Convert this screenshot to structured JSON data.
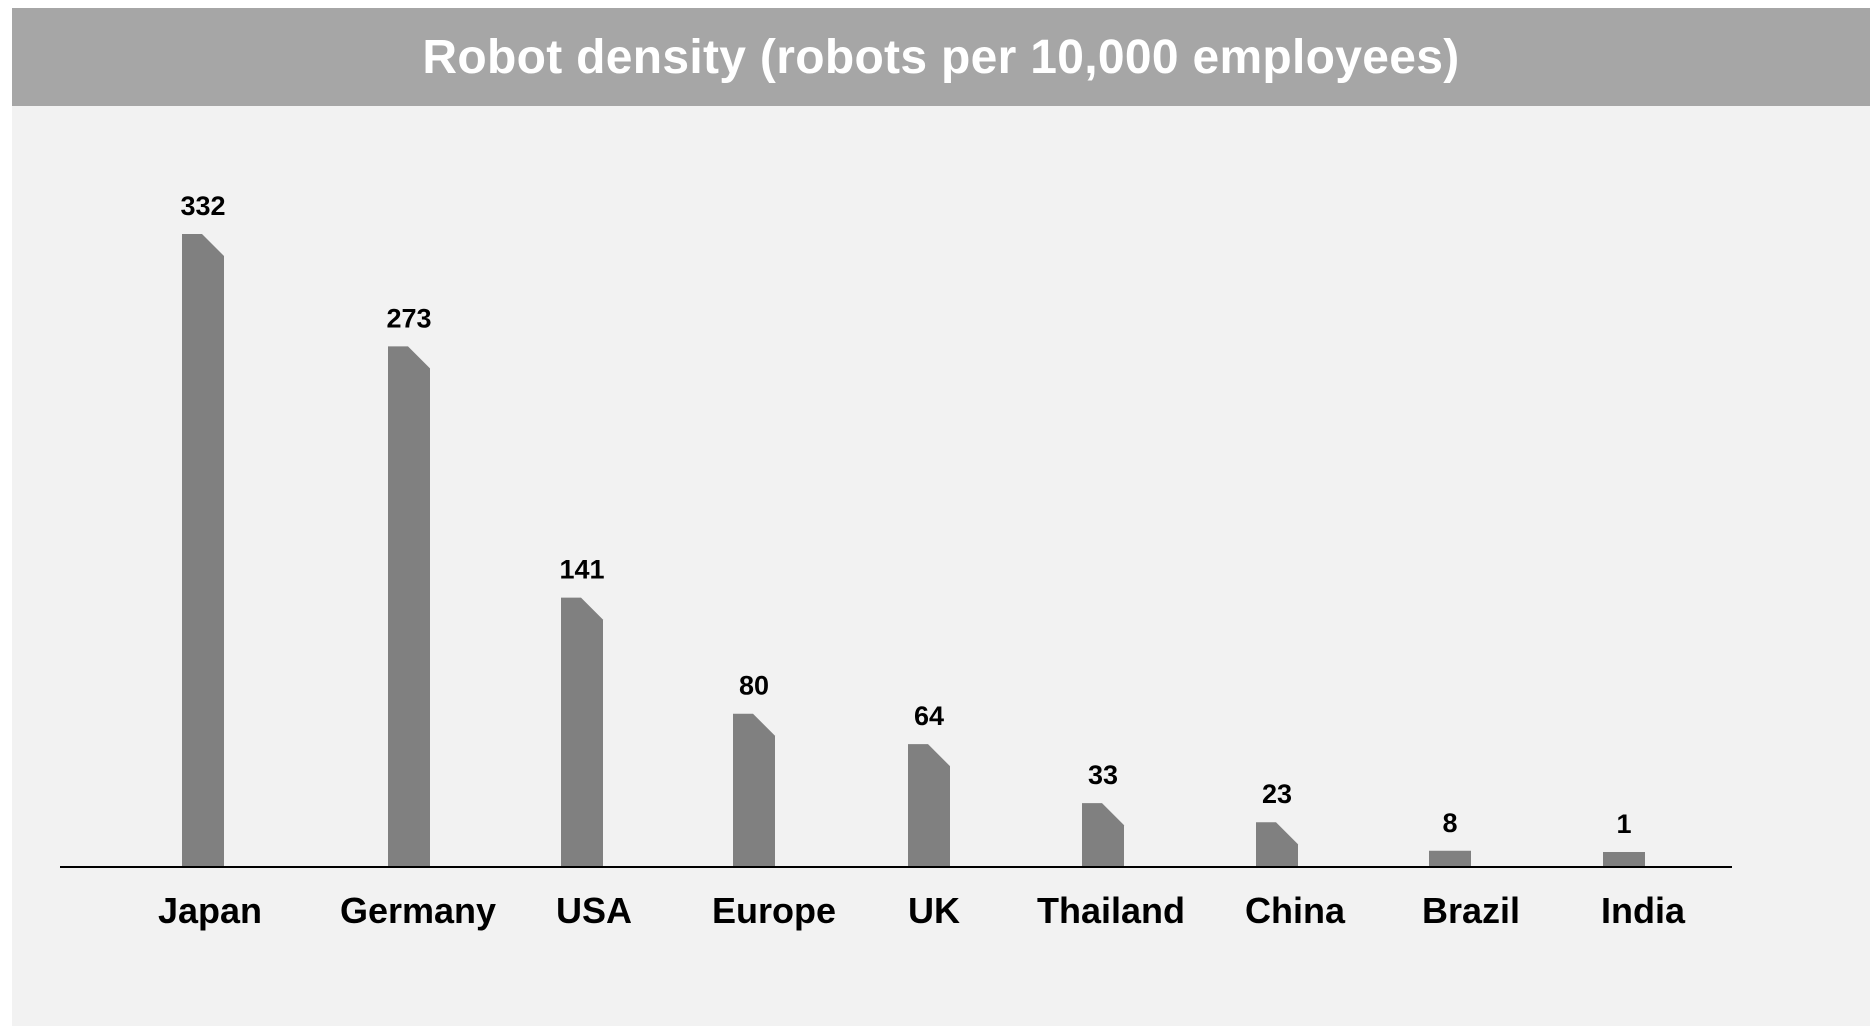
{
  "colors": {
    "panel_background": "#f2f2f2",
    "title_bar": "#a6a6a6",
    "title_text": "#ffffff",
    "bar": "#808080",
    "axis": "#000000",
    "label_text": "#000000"
  },
  "chart_data": {
    "type": "bar",
    "title": "Robot density (robots per 10,000 employees)",
    "xlabel": "",
    "ylabel": "",
    "categories": [
      "Japan",
      "Germany",
      "USA",
      "Europe",
      "UK",
      "Thailand",
      "China",
      "Brazil",
      "India"
    ],
    "values": [
      332,
      273,
      141,
      80,
      64,
      33,
      23,
      8,
      1
    ],
    "data_labels": [
      "332",
      "273",
      "141",
      "80",
      "64",
      "33",
      "23",
      "8",
      "1"
    ],
    "ylim": [
      0,
      332
    ],
    "grid": false,
    "legend": "none"
  }
}
